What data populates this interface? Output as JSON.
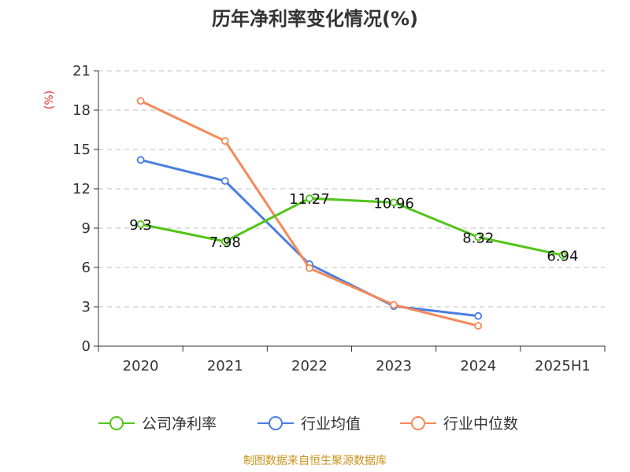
{
  "title": "历年净利率变化情况(%)",
  "source": "制图数据来自恒生聚源数据库",
  "chart_data": {
    "type": "line",
    "title": "历年净利率变化情况(%)",
    "ylabel": "(%)",
    "categories": [
      "2020",
      "2021",
      "2022",
      "2023",
      "2024",
      "2025H1"
    ],
    "yticks": [
      0,
      3,
      6,
      9,
      12,
      15,
      18,
      21
    ],
    "ylim": [
      0,
      21
    ],
    "grid": true,
    "legend_position": "bottom",
    "series": [
      {
        "name": "公司净利率",
        "color": "#52c41a",
        "values": [
          9.3,
          7.98,
          11.27,
          10.96,
          8.32,
          6.94
        ],
        "labels": [
          "9.3",
          "7.98",
          "11.27",
          "10.96",
          "8.32",
          "6.94"
        ]
      },
      {
        "name": "行业均值",
        "color": "#4a7ee0",
        "values": [
          14.2,
          12.6,
          6.25,
          3.05,
          2.3,
          null
        ]
      },
      {
        "name": "行业中位数",
        "color": "#f4895a",
        "values": [
          18.7,
          15.65,
          5.95,
          3.15,
          1.55,
          null
        ]
      }
    ]
  }
}
